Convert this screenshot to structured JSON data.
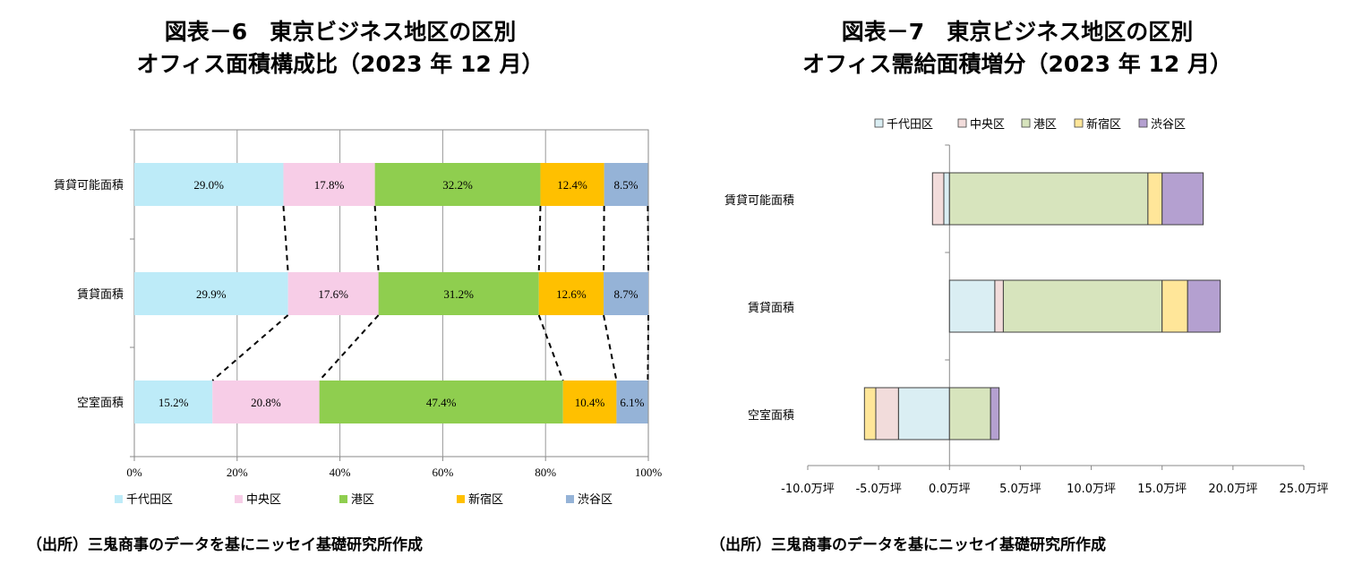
{
  "titles": {
    "chart6_line1": "図表－6　東京ビジネス地区の区別",
    "chart6_line2": "オフィス面積構成比（2023 年 12 月）",
    "chart7_line1": "図表－7　東京ビジネス地区の区別",
    "chart7_line2": "オフィス需給面積増分（2023 年 12 月）"
  },
  "sources": {
    "chart6": "（出所）三鬼商事のデータを基にニッセイ基礎研究所作成",
    "chart7": "（出所）三鬼商事のデータを基にニッセイ基礎研究所作成"
  },
  "colors": {
    "千代田区": "#BDEBF8",
    "中央区": "#F7CDE7",
    "港区": "#8FCE4F",
    "新宿区": "#FFC000",
    "渋谷区": "#95B3D7",
    "c7_千代田区": "#DAEEF3",
    "c7_中央区": "#F2DCDB",
    "c7_港区": "#D7E4BD",
    "c7_新宿区": "#FFE699",
    "c7_渋谷区": "#B4A0D0"
  },
  "chart_data": [
    {
      "type": "bar",
      "orientation": "horizontal",
      "stacked": "percent",
      "categories": [
        "賃貸可能面積",
        "賃貸面積",
        "空室面積"
      ],
      "series": [
        {
          "name": "千代田区",
          "values": [
            29.0,
            29.9,
            15.2
          ]
        },
        {
          "name": "中央区",
          "values": [
            17.8,
            17.6,
            20.8
          ]
        },
        {
          "name": "港区",
          "values": [
            32.2,
            31.2,
            47.4
          ]
        },
        {
          "name": "新宿区",
          "values": [
            12.4,
            12.6,
            10.4
          ]
        },
        {
          "name": "渋谷区",
          "values": [
            8.5,
            8.7,
            6.1
          ]
        }
      ],
      "data_labels": [
        [
          "29.0%",
          "17.8%",
          "32.2%",
          "12.4%",
          "8.5%"
        ],
        [
          "29.9%",
          "17.6%",
          "31.2%",
          "12.6%",
          "8.7%"
        ],
        [
          "15.2%",
          "20.8%",
          "47.4%",
          "10.4%",
          "6.1%"
        ]
      ],
      "xlim": [
        0,
        100
      ],
      "x_ticks": [
        "0%",
        "20%",
        "40%",
        "60%",
        "80%",
        "100%"
      ],
      "grid": true,
      "series_lines": true,
      "legend": "bottom"
    },
    {
      "type": "bar",
      "orientation": "horizontal",
      "stacked": true,
      "unit": "万坪",
      "categories": [
        "賃貸可能面積",
        "賃貸面積",
        "空室面積"
      ],
      "series": [
        {
          "name": "千代田区",
          "values": [
            -0.4,
            3.2,
            -3.6
          ]
        },
        {
          "name": "中央区",
          "values": [
            -0.8,
            0.6,
            -1.6
          ]
        },
        {
          "name": "港区",
          "values": [
            14.0,
            11.2,
            2.9
          ]
        },
        {
          "name": "新宿区",
          "values": [
            1.0,
            1.8,
            -0.8
          ]
        },
        {
          "name": "渋谷区",
          "values": [
            2.9,
            2.3,
            0.6
          ]
        }
      ],
      "xlim": [
        -10,
        25
      ],
      "x_ticks": [
        "-10.0万坪",
        "-5.0万坪",
        "0.0万坪",
        "5.0万坪",
        "10.0万坪",
        "15.0万坪",
        "20.0万坪",
        "25.0万坪"
      ],
      "grid": false,
      "legend": "top"
    }
  ]
}
